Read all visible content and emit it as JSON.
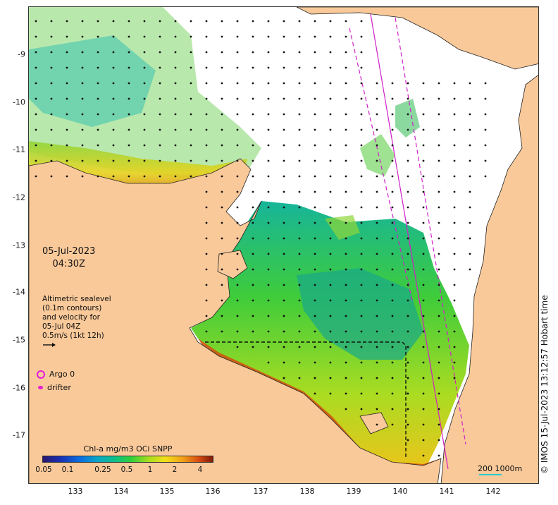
{
  "map": {
    "date": "05-Jul-2023",
    "time": "04:30Z",
    "altimetry": {
      "line1": "Altimetric sealevel",
      "line2": "(0.1m contours)",
      "line3": "and velocity for",
      "line4": "05-Jul 04Z",
      "line5": "0.5m/s (1kt 12h)"
    },
    "legend": {
      "argo": "Argo 0",
      "drifter": "drifter"
    },
    "colorbar": {
      "title": "Chl-a mg/m3 OCi SNPP",
      "ticks": [
        "0.05",
        "0.1",
        "0.25",
        "0.5",
        "1",
        "2",
        "4"
      ]
    },
    "scale": "200  1000m",
    "credit": "© IMOS 15-Jul-2023 13:12:57 Hobart time",
    "axes": {
      "lon_ticks": [
        "133",
        "134",
        "135",
        "136",
        "137",
        "138",
        "139",
        "140",
        "141",
        "142"
      ],
      "lat_ticks": [
        "-9",
        "-10",
        "-11",
        "-12",
        "-13",
        "-14",
        "-15",
        "-16",
        "-17"
      ]
    },
    "colors": {
      "land": "#f9c99a",
      "track": "#d020c8",
      "argo": "#e81bd6",
      "arrows": "#111111"
    }
  }
}
